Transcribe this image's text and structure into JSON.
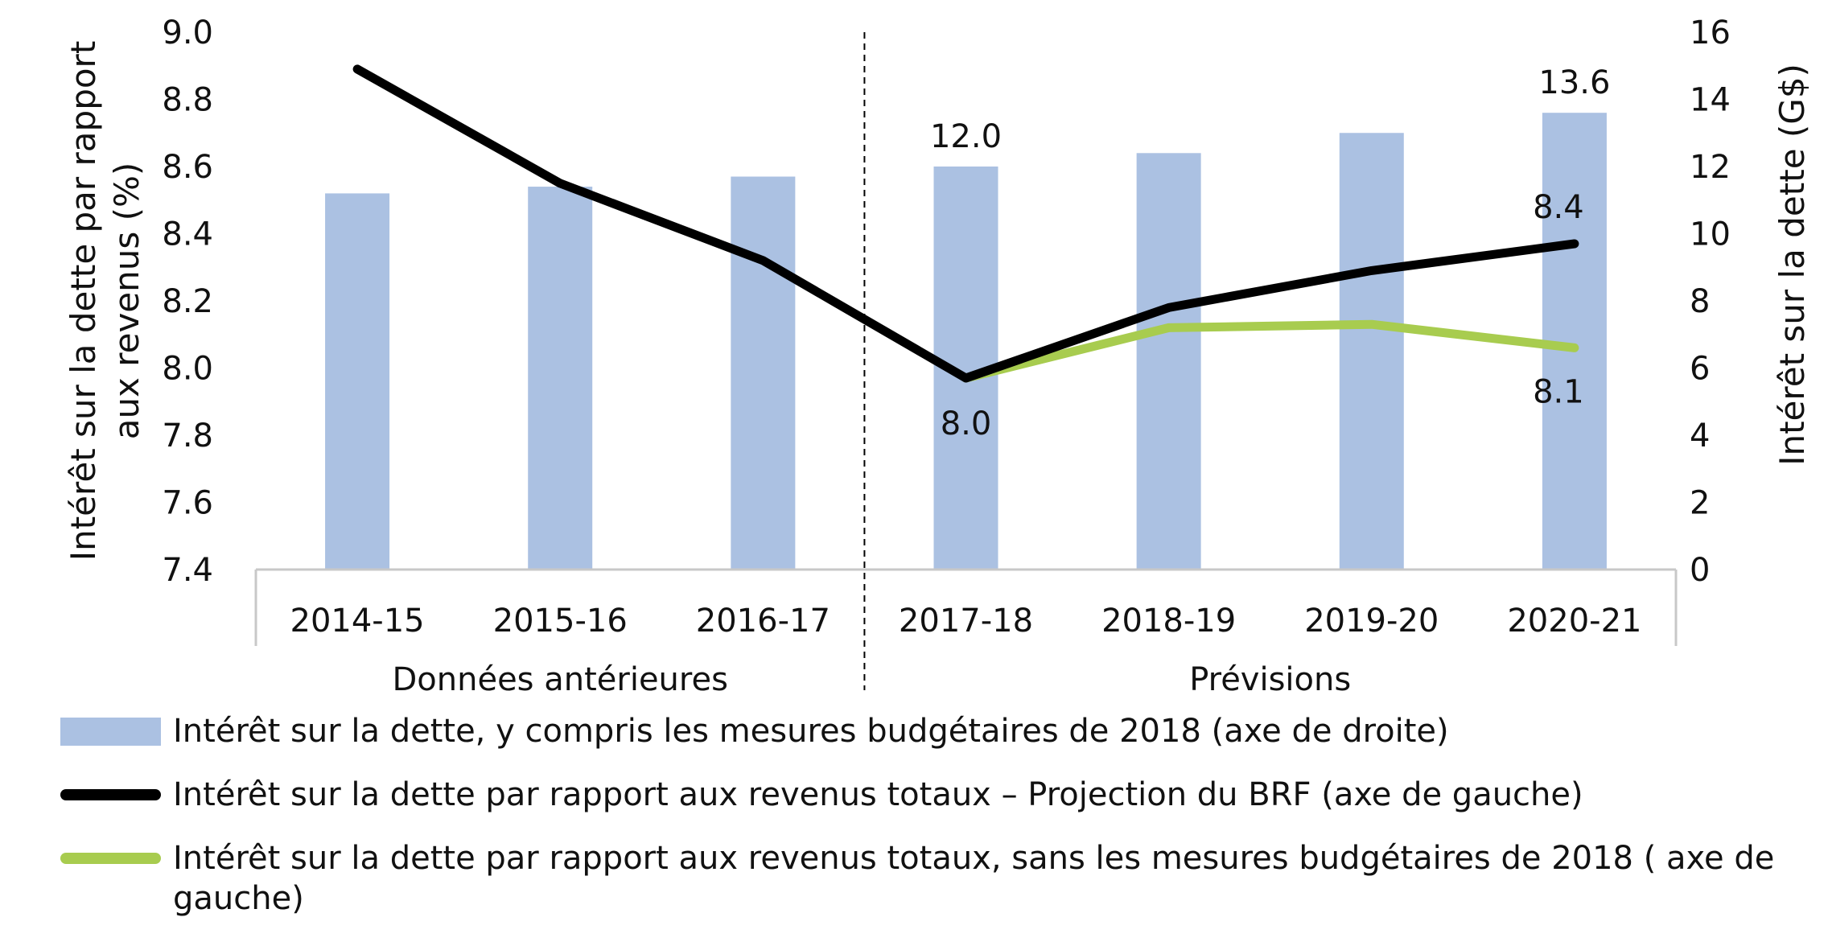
{
  "colors": {
    "bar": "#abc1e2",
    "line_brf": "#000000",
    "line_without": "#a8cc4f",
    "axis": "#c8c8c8",
    "divider": "#000000"
  },
  "chart_data": {
    "type": "bar",
    "categories": [
      "2014-15",
      "2015-16",
      "2016-17",
      "2017-18",
      "2018-19",
      "2019-20",
      "2020-21"
    ],
    "groups": [
      {
        "label": "Données antérieures",
        "categories": [
          "2014-15",
          "2015-16",
          "2016-17"
        ]
      },
      {
        "label": "Prévisions",
        "categories": [
          "2017-18",
          "2018-19",
          "2019-20",
          "2020-21"
        ]
      }
    ],
    "series": [
      {
        "name": "Intérêt sur la dette, y compris les mesures budgétaires de 2018 (axe de droite)",
        "type": "bar",
        "axis": "right",
        "values": [
          11.2,
          11.4,
          11.7,
          12.0,
          12.4,
          13.0,
          13.6
        ],
        "data_labels": {
          "3": "12.0",
          "6": "13.6"
        }
      },
      {
        "name": "Intérêt sur la dette par rapport aux revenus totaux – Projection du BRF (axe de gauche)",
        "type": "line",
        "axis": "left",
        "values": [
          8.89,
          8.55,
          8.32,
          7.97,
          8.18,
          8.29,
          8.37
        ],
        "data_labels": {
          "3": "8.0",
          "6": "8.4"
        }
      },
      {
        "name": "Intérêt sur la dette par rapport aux revenus totaux, sans les mesures budgétaires de 2018 ( axe de gauche)",
        "type": "line",
        "axis": "left",
        "values": [
          null,
          null,
          null,
          7.97,
          8.12,
          8.13,
          8.06
        ],
        "data_labels": {
          "6": "8.1"
        }
      }
    ],
    "y_left": {
      "label": "Intérêt sur la dette par rapport aux revenus (%)",
      "ylim": [
        7.4,
        9.0
      ],
      "ticks": [
        "9.0",
        "8.8",
        "8.6",
        "8.4",
        "8.2",
        "8.0",
        "7.8",
        "7.6",
        "7.4"
      ]
    },
    "y_right": {
      "label": "Intérêt sur la dette (G$)",
      "ylim": [
        0,
        16
      ],
      "ticks": [
        "16",
        "14",
        "12",
        "10",
        "8",
        "6",
        "4",
        "2",
        "0"
      ]
    },
    "grid": false,
    "legend_position": "bottom"
  }
}
